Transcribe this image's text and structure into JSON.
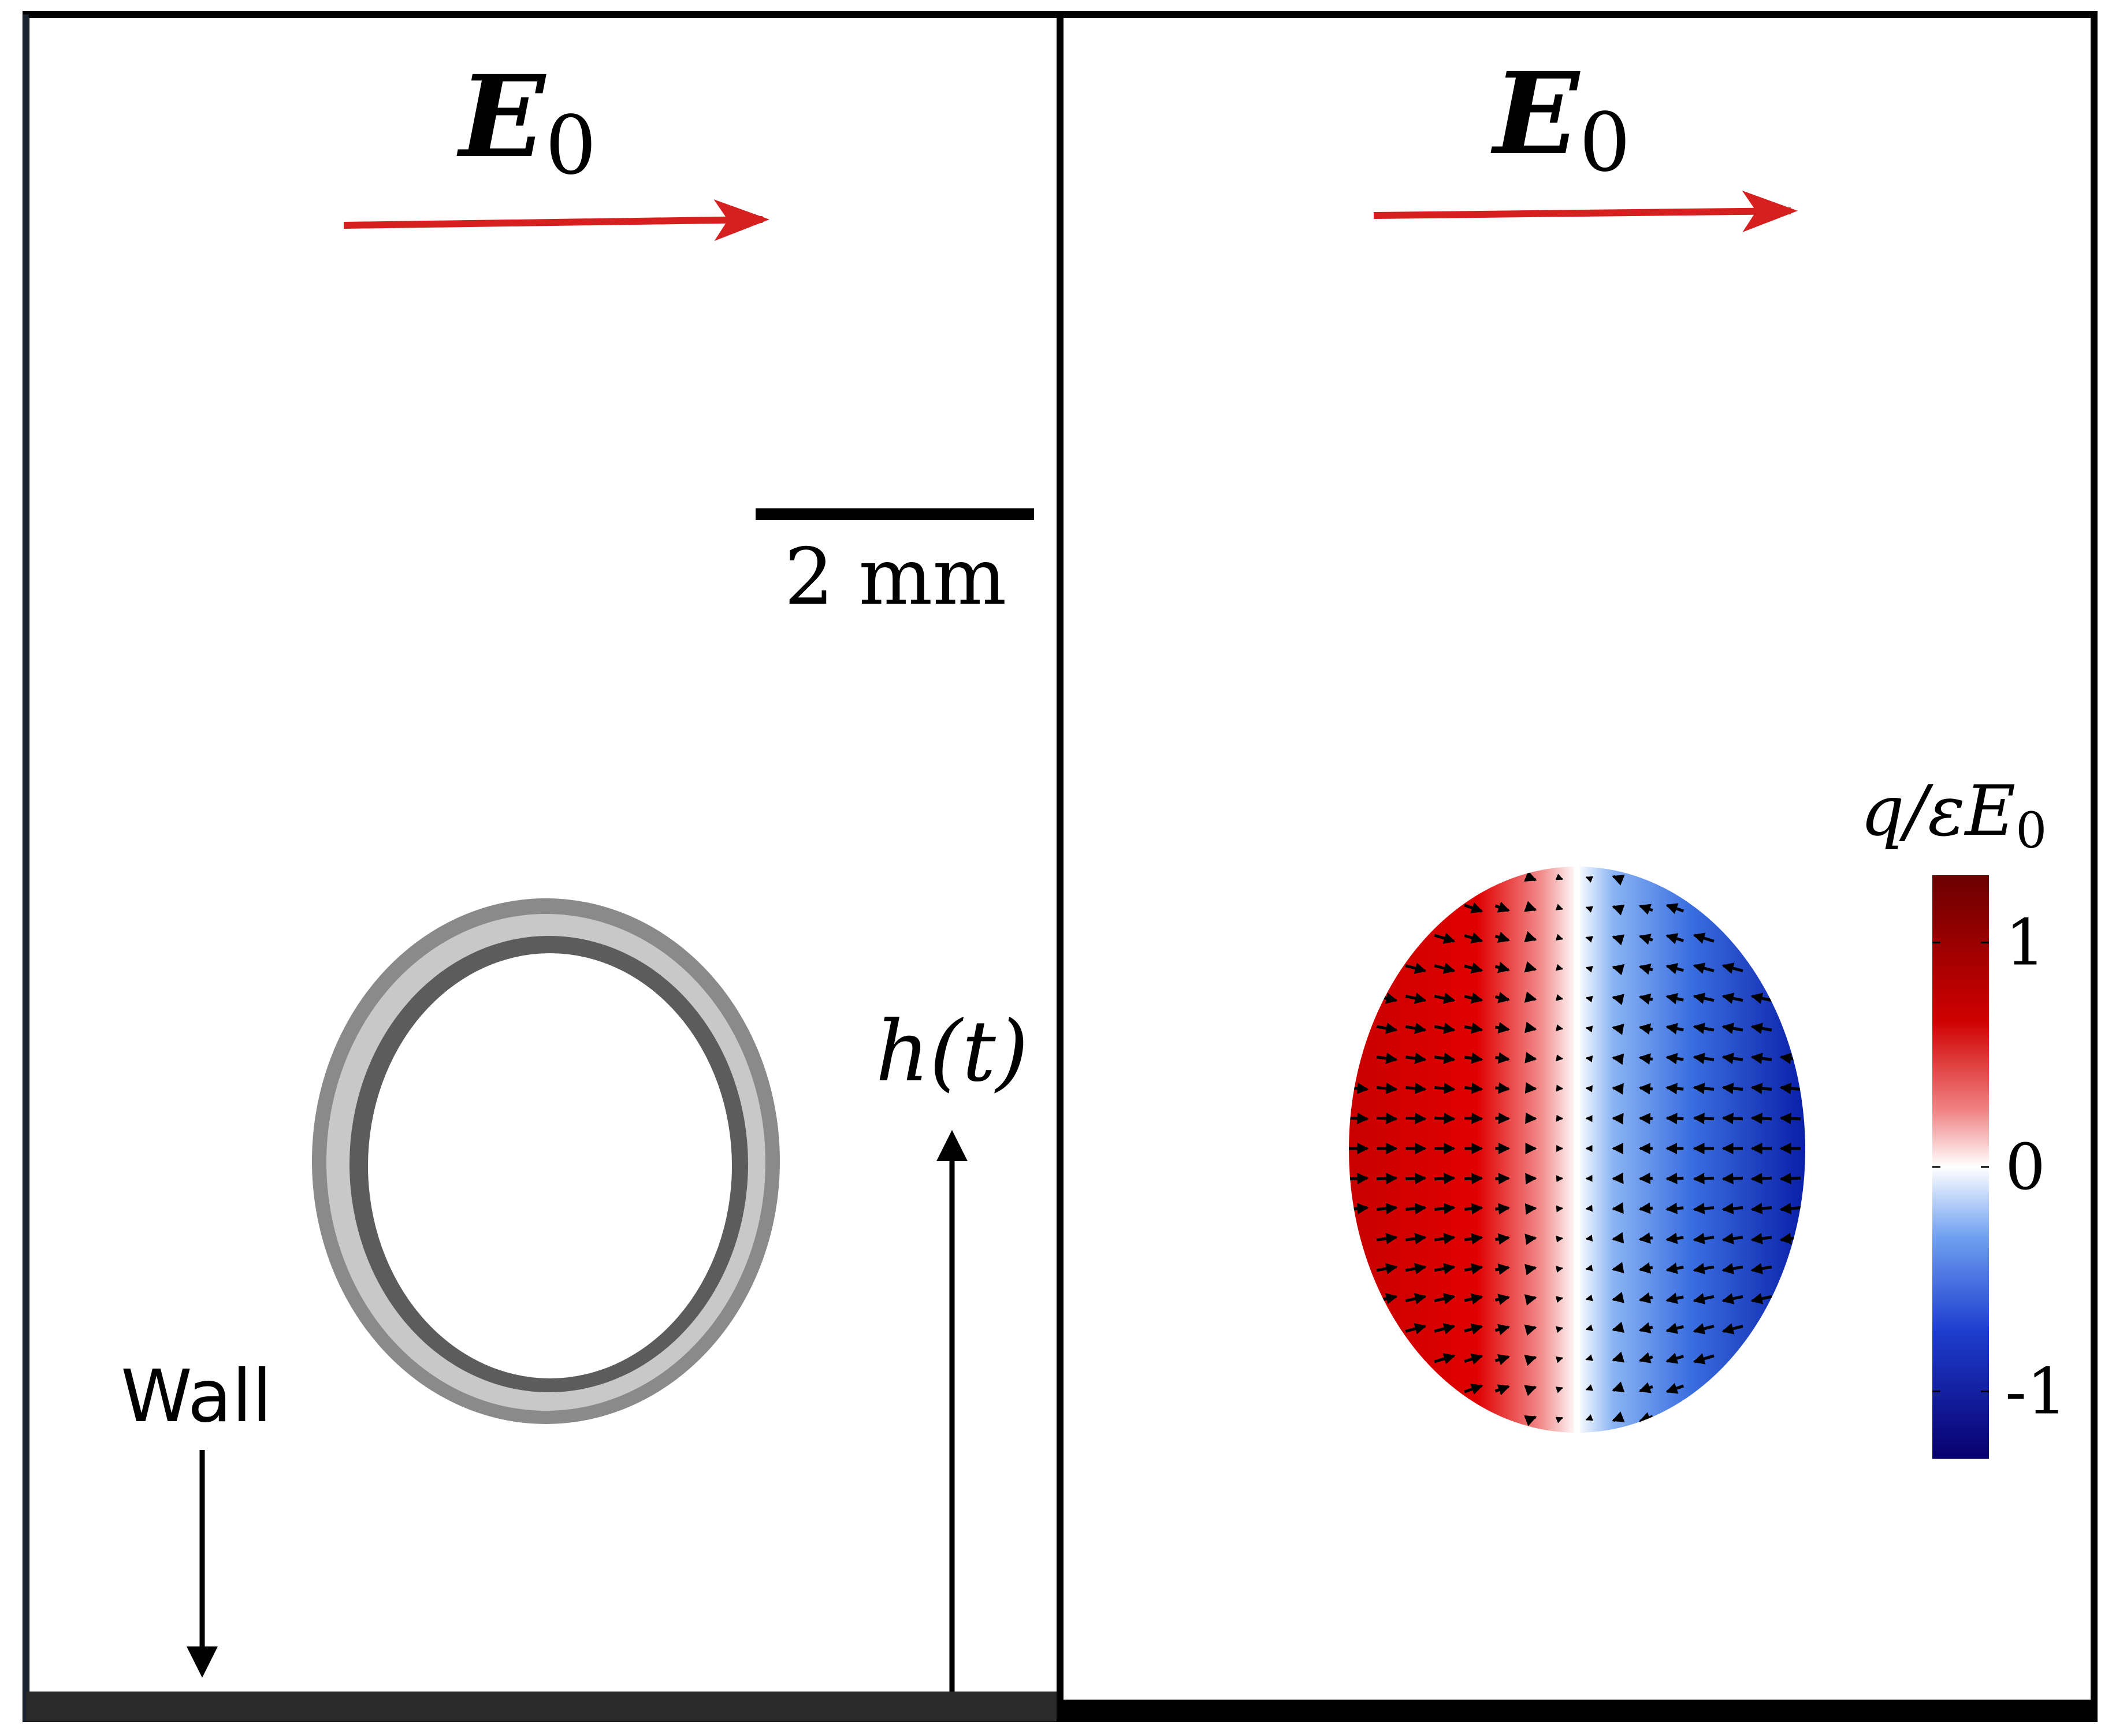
{
  "left_panel": {
    "field_label": "E",
    "field_subscript": "0",
    "scale_bar_label": "2 mm",
    "height_label": "h(t)",
    "wall_label": "Wall"
  },
  "right_panel": {
    "field_label": "E",
    "field_subscript": "0",
    "colorbar": {
      "title": "q/εE",
      "title_subscript": "0",
      "tick_labels": [
        "1",
        "0",
        "-1"
      ],
      "ticks": [
        1,
        0,
        -1
      ],
      "range": [
        -1.3,
        1.3
      ],
      "colors": [
        "#08006e",
        "#1e3ecf",
        "#6fa0f0",
        "#ffffff",
        "#f08080",
        "#d00000",
        "#6a0000"
      ]
    }
  },
  "colors": {
    "field_arrow": "#d62020",
    "frame": "#000000",
    "droplet_rim": "#606060",
    "wall": "#2a2a2a"
  }
}
